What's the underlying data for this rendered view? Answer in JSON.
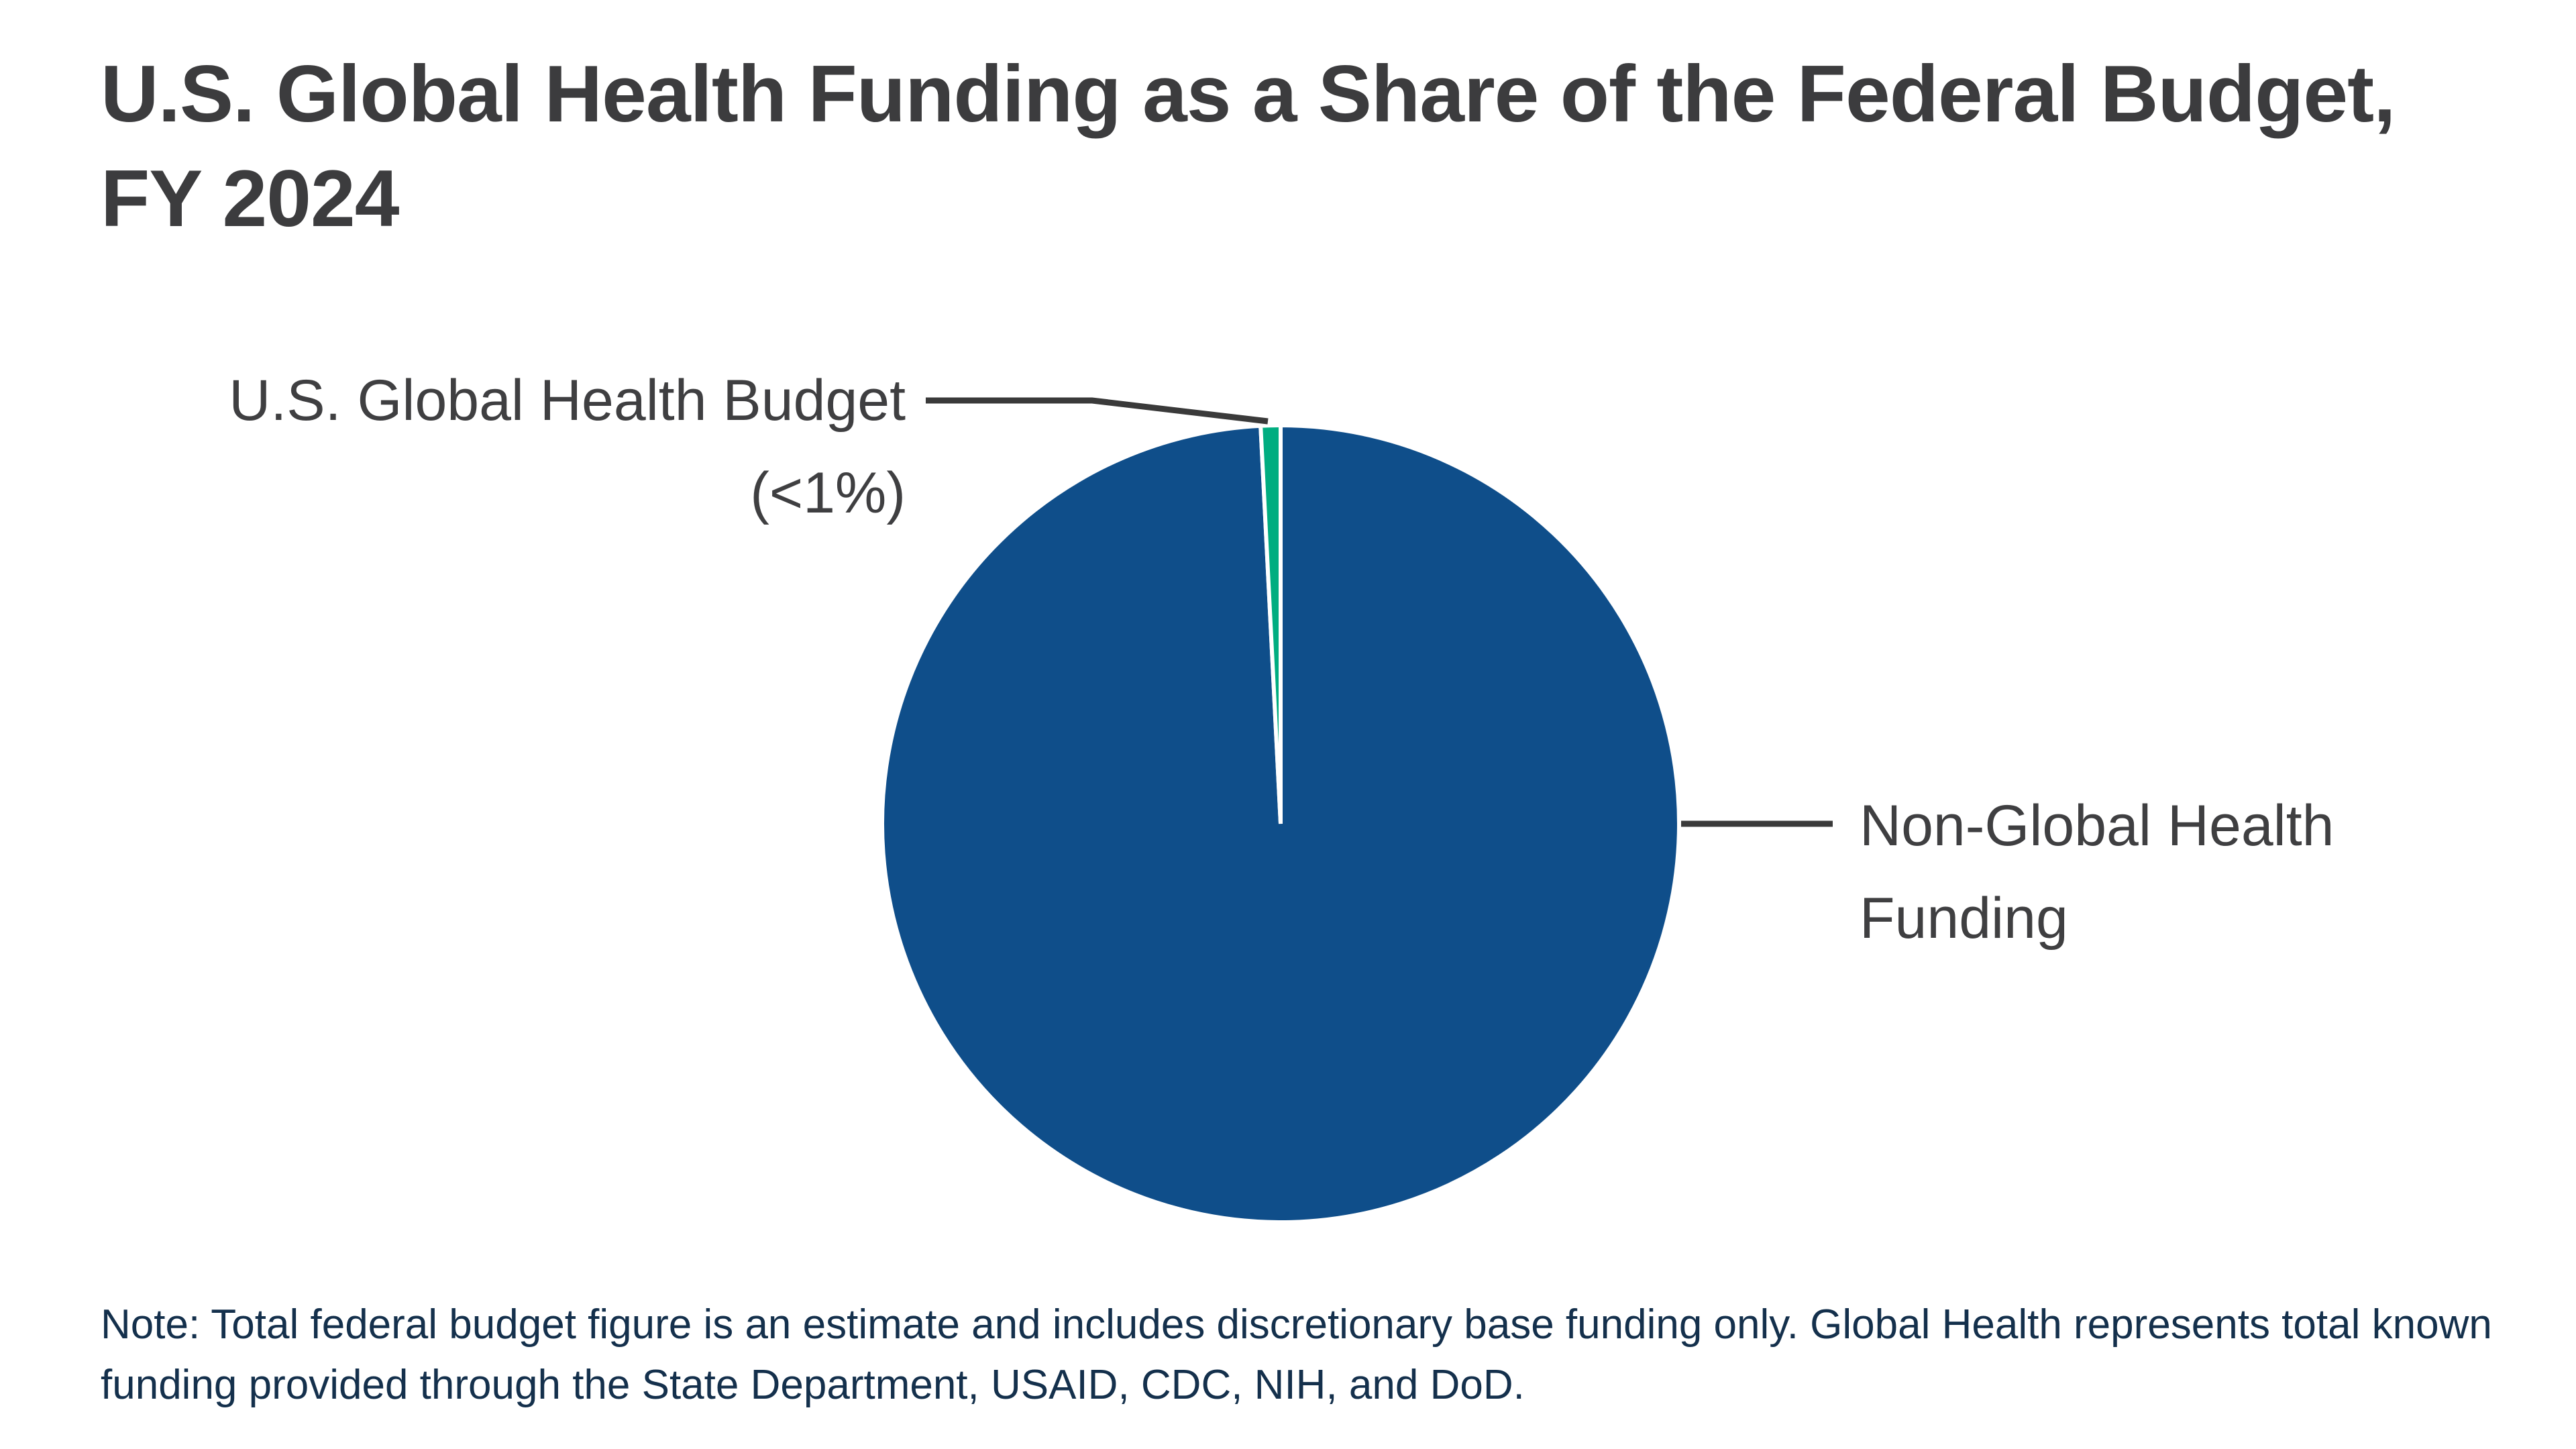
{
  "title": {
    "line1": "U.S. Global Health Funding as a Share of the Federal Budget,",
    "line2": "FY 2024",
    "full": "U.S. Global Health Funding as a Share of the Federal Budget, FY 2024"
  },
  "labels": {
    "global_health": {
      "line1": "U.S. Global Health Budget",
      "line2": "(<1%)"
    },
    "non_global_health": {
      "line1": "Non-Global Health",
      "line2": "Funding"
    }
  },
  "note": "Note: Total federal budget figure is an estimate and includes discretionary base funding only. Global Health represents total known funding provided through the State Department, USAID, CDC, NIH, and DoD.",
  "colors": {
    "global_health_slice": "#00AD80",
    "non_global_health_slice": "#0F4E8A",
    "title_text": "#3C3C3E",
    "callout_text": "#3F3F41",
    "note_text": "#14304C",
    "leader_line": "#3A3A3A",
    "slice_gap": "#FFFFFF",
    "background": "#FFFFFF"
  },
  "chart_data": {
    "type": "pie",
    "title": "U.S. Global Health Funding as a Share of the Federal Budget, FY 2024",
    "categories": [
      "U.S. Global Health Budget",
      "Non-Global Health Funding"
    ],
    "values": [
      0.8,
      99.2
    ],
    "value_labels": [
      "<1%",
      ""
    ],
    "legend_position": "none",
    "annotations": [
      {
        "text": "U.S. Global Health Budget (<1%)",
        "target": "U.S. Global Health Budget",
        "side": "top-left"
      },
      {
        "text": "Non-Global Health Funding",
        "target": "Non-Global Health Funding",
        "side": "right"
      }
    ],
    "note": "Note: Total federal budget figure is an estimate and includes discretionary base funding only. Global Health represents total known funding provided through the State Department, USAID, CDC, NIH, and DoD."
  }
}
